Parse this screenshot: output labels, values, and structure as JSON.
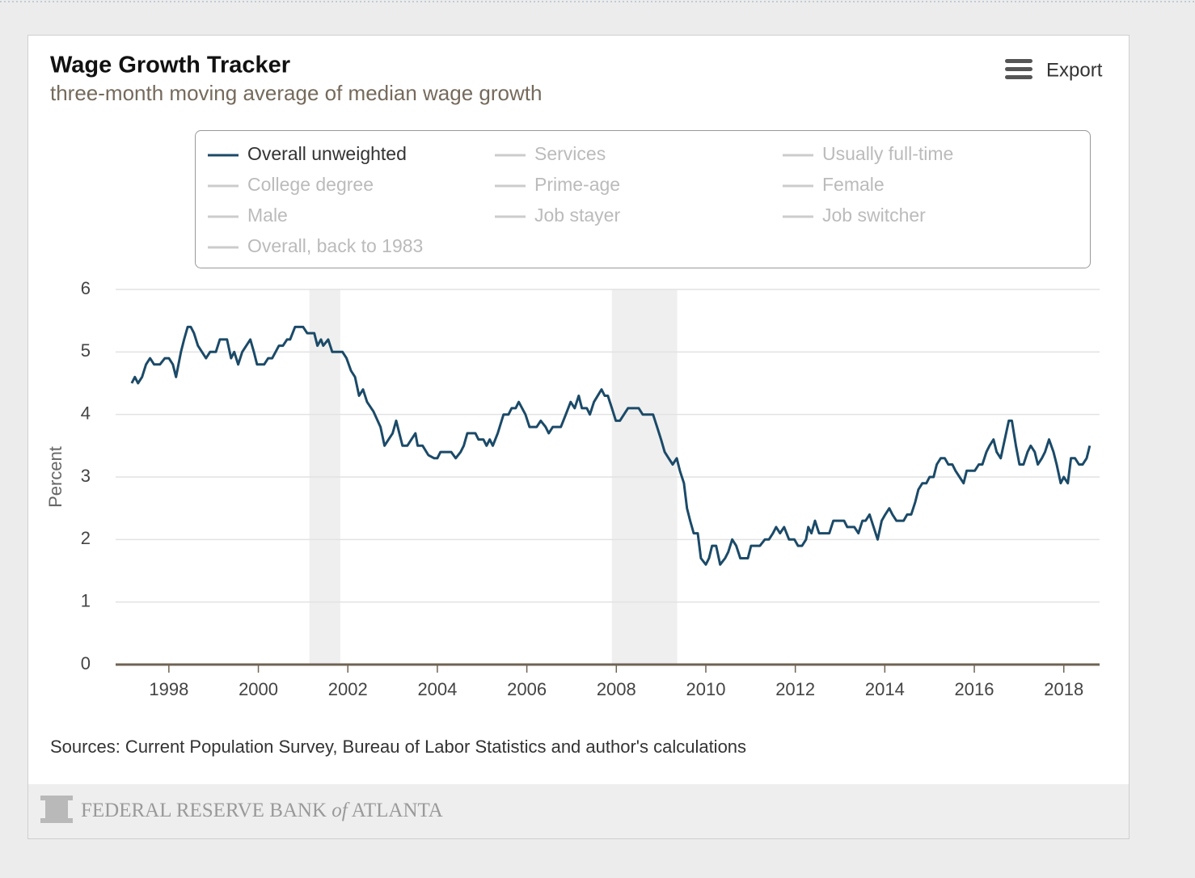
{
  "export_label": "Export",
  "footer": {
    "bank": "FEDERAL RESERVE BANK",
    "of": "of",
    "city": "ATLANTA"
  },
  "chart_data": {
    "type": "line",
    "title": "Wage Growth Tracker",
    "subtitle": "three-month moving average of median wage growth",
    "ylabel": "Percent",
    "source": "Sources: Current Population Survey, Bureau of Labor Statistics and author's calculations",
    "xlim": [
      1996.81,
      2018.8
    ],
    "xticks": [
      1998,
      2000,
      2002,
      2004,
      2006,
      2008,
      2010,
      2012,
      2014,
      2016,
      2018
    ],
    "ylim": [
      0,
      6
    ],
    "yticks": [
      0,
      1,
      2,
      3,
      4,
      5,
      6
    ],
    "grid": true,
    "recessions": [
      [
        2001.14,
        2001.83
      ],
      [
        2007.9,
        2009.36
      ]
    ],
    "recession_color": "#efefef",
    "inactive_series": [
      "Services",
      "Usually full-time",
      "College degree",
      "Prime-age",
      "Female",
      "Male",
      "Job stayer",
      "Job switcher",
      "Overall, back to 1983"
    ],
    "inactive_color": "#cccccc",
    "x": [
      1997.17,
      1997.24,
      1997.31,
      1997.4,
      1997.49,
      1997.58,
      1997.67,
      1997.8,
      1997.91,
      1998.0,
      1998.09,
      1998.16,
      1998.27,
      1998.34,
      1998.42,
      1998.49,
      1998.56,
      1998.65,
      1998.74,
      1998.83,
      1998.92,
      1999.05,
      1999.14,
      1999.3,
      1999.39,
      1999.46,
      1999.55,
      1999.64,
      1999.82,
      1999.9,
      1999.97,
      2000.13,
      2000.22,
      2000.31,
      2000.46,
      2000.55,
      2000.64,
      2000.71,
      2000.82,
      2001.0,
      2001.09,
      2001.25,
      2001.32,
      2001.4,
      2001.45,
      2001.56,
      2001.65,
      2001.88,
      2001.97,
      2002.07,
      2002.16,
      2002.25,
      2002.34,
      2002.43,
      2002.57,
      2002.73,
      2002.82,
      2002.91,
      2003.0,
      2003.08,
      2003.15,
      2003.22,
      2003.33,
      2003.42,
      2003.51,
      2003.56,
      2003.67,
      2003.8,
      2003.93,
      2004.0,
      2004.07,
      2004.31,
      2004.41,
      2004.52,
      2004.59,
      2004.67,
      2004.85,
      2004.92,
      2005.03,
      2005.1,
      2005.17,
      2005.24,
      2005.35,
      2005.48,
      2005.59,
      2005.66,
      2005.75,
      2005.82,
      2005.97,
      2006.06,
      2006.22,
      2006.31,
      2006.42,
      2006.49,
      2006.58,
      2006.76,
      2006.87,
      2006.98,
      2007.07,
      2007.16,
      2007.23,
      2007.34,
      2007.41,
      2007.5,
      2007.67,
      2007.74,
      2007.81,
      2007.9,
      2007.99,
      2008.08,
      2008.17,
      2008.26,
      2008.5,
      2008.59,
      2008.82,
      2008.91,
      2009.0,
      2009.08,
      2009.17,
      2009.26,
      2009.35,
      2009.42,
      2009.51,
      2009.58,
      2009.65,
      2009.73,
      2009.82,
      2009.89,
      2010.0,
      2010.07,
      2010.14,
      2010.23,
      2010.32,
      2010.43,
      2010.5,
      2010.59,
      2010.68,
      2010.77,
      2010.94,
      2011.01,
      2011.21,
      2011.32,
      2011.41,
      2011.5,
      2011.57,
      2011.66,
      2011.75,
      2011.86,
      2011.98,
      2012.06,
      2012.15,
      2012.24,
      2012.29,
      2012.36,
      2012.44,
      2012.53,
      2012.76,
      2012.85,
      2013.09,
      2013.16,
      2013.32,
      2013.41,
      2013.5,
      2013.57,
      2013.66,
      2013.75,
      2013.84,
      2013.93,
      2014.01,
      2014.1,
      2014.17,
      2014.26,
      2014.42,
      2014.5,
      2014.59,
      2014.68,
      2014.75,
      2014.84,
      2014.93,
      2015.0,
      2015.09,
      2015.16,
      2015.25,
      2015.34,
      2015.42,
      2015.51,
      2015.58,
      2015.67,
      2015.76,
      2015.83,
      2015.92,
      2016.01,
      2016.1,
      2016.18,
      2016.27,
      2016.34,
      2016.43,
      2016.5,
      2016.59,
      2016.68,
      2016.77,
      2016.84,
      2016.93,
      2017.01,
      2017.1,
      2017.19,
      2017.26,
      2017.35,
      2017.42,
      2017.51,
      2017.58,
      2017.67,
      2017.77,
      2017.84,
      2017.93,
      2018.0,
      2018.09,
      2018.16,
      2018.25,
      2018.34,
      2018.42,
      2018.51,
      2018.58
    ],
    "series": [
      {
        "name": "Overall unweighted",
        "color": "#1b4a68",
        "values": [
          4.5,
          4.6,
          4.5,
          4.6,
          4.8,
          4.9,
          4.8,
          4.8,
          4.9,
          4.9,
          4.8,
          4.6,
          5.0,
          5.2,
          5.4,
          5.4,
          5.3,
          5.1,
          5.0,
          4.9,
          5.0,
          5.0,
          5.2,
          5.2,
          4.9,
          5.0,
          4.8,
          5.0,
          5.2,
          5.0,
          4.8,
          4.8,
          4.9,
          4.9,
          5.1,
          5.1,
          5.2,
          5.2,
          5.4,
          5.4,
          5.3,
          5.3,
          5.1,
          5.2,
          5.1,
          5.2,
          5.0,
          5.0,
          4.9,
          4.7,
          4.6,
          4.3,
          4.4,
          4.2,
          4.05,
          3.8,
          3.5,
          3.6,
          3.7,
          3.9,
          3.7,
          3.5,
          3.5,
          3.6,
          3.7,
          3.5,
          3.5,
          3.35,
          3.3,
          3.3,
          3.4,
          3.4,
          3.3,
          3.4,
          3.5,
          3.7,
          3.7,
          3.6,
          3.6,
          3.5,
          3.6,
          3.5,
          3.7,
          4.0,
          4.0,
          4.1,
          4.1,
          4.2,
          4.0,
          3.8,
          3.8,
          3.9,
          3.8,
          3.7,
          3.8,
          3.8,
          4.0,
          4.2,
          4.1,
          4.3,
          4.1,
          4.1,
          4.0,
          4.2,
          4.4,
          4.3,
          4.3,
          4.1,
          3.9,
          3.9,
          4.0,
          4.1,
          4.1,
          4.0,
          4.0,
          3.8,
          3.6,
          3.4,
          3.3,
          3.2,
          3.3,
          3.1,
          2.9,
          2.5,
          2.3,
          2.1,
          2.1,
          1.7,
          1.6,
          1.7,
          1.9,
          1.9,
          1.6,
          1.7,
          1.8,
          2.0,
          1.9,
          1.7,
          1.7,
          1.9,
          1.9,
          2.0,
          2.0,
          2.1,
          2.2,
          2.1,
          2.2,
          2.0,
          2.0,
          1.9,
          1.9,
          2.0,
          2.2,
          2.1,
          2.3,
          2.1,
          2.1,
          2.3,
          2.3,
          2.2,
          2.2,
          2.1,
          2.3,
          2.3,
          2.4,
          2.2,
          2.0,
          2.3,
          2.4,
          2.5,
          2.4,
          2.3,
          2.3,
          2.4,
          2.4,
          2.6,
          2.8,
          2.9,
          2.9,
          3.0,
          3.0,
          3.2,
          3.3,
          3.3,
          3.2,
          3.2,
          3.1,
          3.0,
          2.9,
          3.1,
          3.1,
          3.1,
          3.2,
          3.2,
          3.4,
          3.5,
          3.6,
          3.4,
          3.3,
          3.6,
          3.9,
          3.9,
          3.5,
          3.2,
          3.2,
          3.4,
          3.5,
          3.4,
          3.2,
          3.3,
          3.4,
          3.6,
          3.4,
          3.2,
          2.9,
          3.0,
          2.9,
          3.3,
          3.3,
          3.2,
          3.2,
          3.3,
          3.5
        ]
      }
    ]
  }
}
